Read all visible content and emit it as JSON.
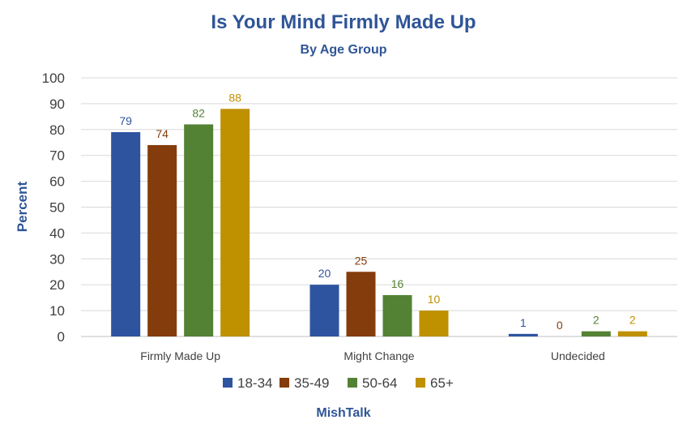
{
  "chart_data": {
    "type": "bar",
    "title": "Is Your Mind Firmly Made Up",
    "subtitle": "By Age Group",
    "ylabel": "Percent",
    "xlabel": "",
    "ylim": [
      0,
      100
    ],
    "yticks": [
      0,
      10,
      20,
      30,
      40,
      50,
      60,
      70,
      80,
      90,
      100
    ],
    "grid": true,
    "legend_position": "bottom",
    "categories": [
      "Firmly Made Up",
      "Might Change",
      "Undecided"
    ],
    "series": [
      {
        "name": "18-34",
        "color": "#2E54A0",
        "values": [
          79,
          20,
          1
        ]
      },
      {
        "name": "35-49",
        "color": "#843C0C",
        "values": [
          74,
          25,
          0
        ]
      },
      {
        "name": "50-64",
        "color": "#548235",
        "values": [
          82,
          16,
          2
        ]
      },
      {
        "name": "65+",
        "color": "#BF9000",
        "values": [
          88,
          10,
          2
        ]
      }
    ],
    "source": "MishTalk",
    "colors": {
      "title": "#2F5597",
      "axis_text": "#404040",
      "grid": "#D9D9D9"
    }
  }
}
